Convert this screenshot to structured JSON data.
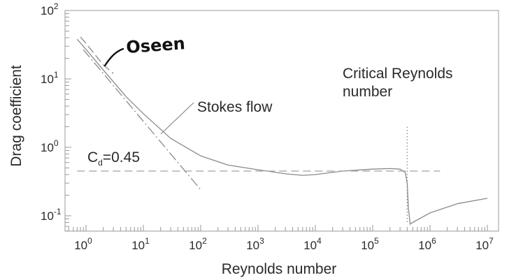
{
  "chart_data": {
    "type": "line",
    "xlabel": "Reynolds number",
    "ylabel": "Drag coefficient",
    "xscale": "log",
    "yscale": "log",
    "xlim": [
      0.5,
      20000000
    ],
    "ylim": [
      0.06,
      100
    ],
    "x_ticks": [
      {
        "base": "10",
        "exp": "0"
      },
      {
        "base": "10",
        "exp": "1"
      },
      {
        "base": "10",
        "exp": "2"
      },
      {
        "base": "10",
        "exp": "3"
      },
      {
        "base": "10",
        "exp": "4"
      },
      {
        "base": "10",
        "exp": "5"
      },
      {
        "base": "10",
        "exp": "6"
      },
      {
        "base": "10",
        "exp": "7"
      }
    ],
    "y_ticks": [
      {
        "base": "10",
        "exp": "-1"
      },
      {
        "base": "10",
        "exp": "0"
      },
      {
        "base": "10",
        "exp": "1"
      },
      {
        "base": "10",
        "exp": "2"
      }
    ],
    "series": [
      {
        "style": "solid",
        "color": "#8a8a8a",
        "x": [
          0.7,
          1,
          2,
          5,
          10,
          30,
          100,
          300,
          1000,
          3000,
          6000,
          10000,
          30000,
          100000,
          200000,
          300000,
          370000,
          400000,
          420000,
          450000,
          500000,
          1000000,
          3000000,
          10000000
        ],
        "y": [
          38,
          27,
          13.5,
          5.5,
          3.1,
          1.35,
          0.75,
          0.55,
          0.47,
          0.41,
          0.39,
          0.4,
          0.45,
          0.48,
          0.49,
          0.48,
          0.43,
          0.3,
          0.13,
          0.075,
          0.08,
          0.11,
          0.15,
          0.18
        ]
      },
      {
        "style": "dash-dot",
        "color": "#8a8a8a",
        "x": [
          0.9,
          1,
          10,
          100
        ],
        "y": [
          26.7,
          24,
          2.4,
          0.24
        ]
      },
      {
        "style": "long-dash",
        "color": "#8a8a8a",
        "x": [
          0.8,
          1,
          2,
          3
        ],
        "y": [
          41,
          33,
          16,
          12
        ]
      }
    ],
    "reference_lines": [
      {
        "orientation": "horizontal",
        "y": 0.45,
        "x_range": [
          0.7,
          1500000
        ],
        "style": "dashed",
        "label_main": "C",
        "label_sub": "d",
        "label_rest": "=0.45"
      },
      {
        "orientation": "vertical",
        "x": 400000,
        "y_range": [
          0.075,
          2.0
        ],
        "style": "dotted"
      }
    ],
    "annotations": {
      "stokes": "Stokes flow",
      "critical_line1": "Critical Reynolds",
      "critical_line2": "number",
      "oseen": "Oseen"
    },
    "grid": false
  }
}
